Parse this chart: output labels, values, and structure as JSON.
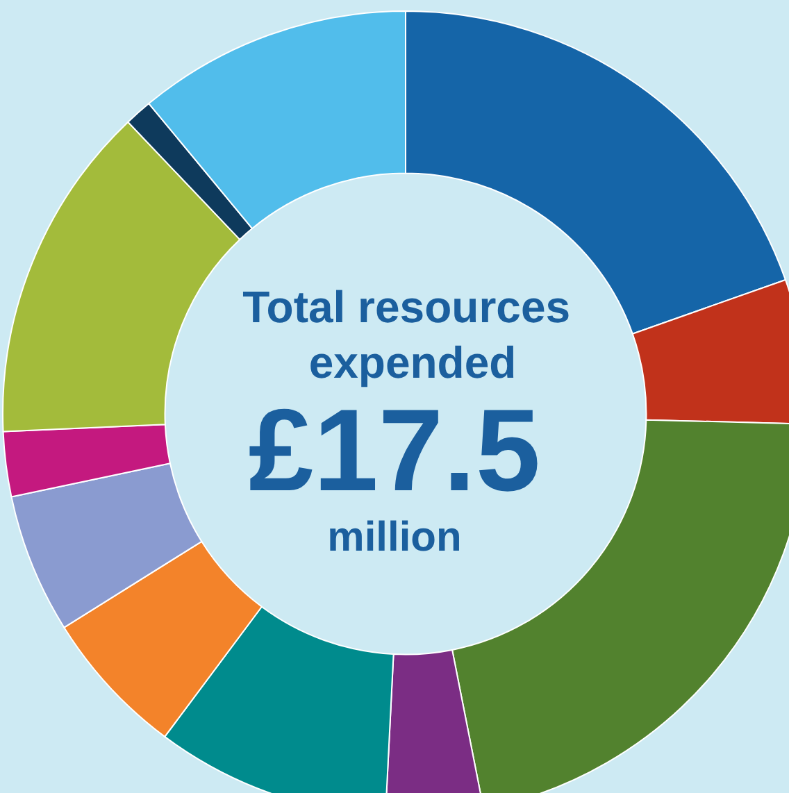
{
  "chart_data": {
    "type": "donut",
    "title": "Total resources expended",
    "annotations": [
      "£17.5",
      "million"
    ],
    "categories": [
      null,
      null,
      null,
      null,
      null,
      null,
      null,
      null,
      null,
      null,
      null
    ],
    "values": [
      19.6,
      5.8,
      21.5,
      3.9,
      9.4,
      5.9,
      5.6,
      2.6,
      13.6,
      1.1,
      11.0
    ],
    "colors": [
      "#1565a8",
      "#c1321b",
      "#52822e",
      "#7b2d84",
      "#008b8d",
      "#f3832a",
      "#8a9bd0",
      "#c4197f",
      "#a3bb3b",
      "#0e3a5c",
      "#51bdeb"
    ]
  }
}
